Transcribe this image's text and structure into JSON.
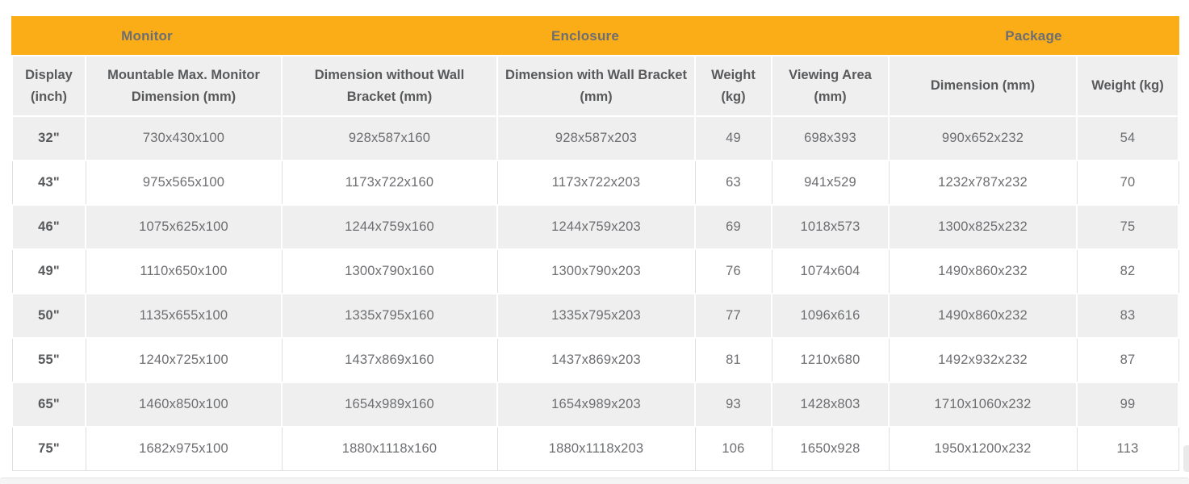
{
  "colors": {
    "accent_orange": "#FBAD18",
    "group_header_text": "#6D6E71",
    "column_header_text": "#58595B",
    "data_text": "#6D6E71",
    "row_alt_background": "#EFEFEF",
    "row_background": "#FFFFFF",
    "cell_border": "#DFDFDF"
  },
  "table": {
    "group_headers": [
      {
        "label": "Monitor"
      },
      {
        "label": "Enclosure"
      },
      {
        "label": "Package"
      }
    ],
    "columns": [
      "Display (inch)",
      "Mountable Max. Monitor Dimension (mm)",
      "Dimension without Wall Bracket (mm)",
      "Dimension with Wall Bracket (mm)",
      "Weight (kg)",
      "Viewing Area (mm)",
      "Dimension (mm)",
      "Weight (kg)"
    ],
    "rows": [
      [
        "32\"",
        "730x430x100",
        "928x587x160",
        "928x587x203",
        "49",
        "698x393",
        "990x652x232",
        "54"
      ],
      [
        "43\"",
        "975x565x100",
        "1173x722x160",
        "1173x722x203",
        "63",
        "941x529",
        "1232x787x232",
        "70"
      ],
      [
        "46\"",
        "1075x625x100",
        "1244x759x160",
        "1244x759x203",
        "69",
        "1018x573",
        "1300x825x232",
        "75"
      ],
      [
        "49\"",
        "1110x650x100",
        "1300x790x160",
        "1300x790x203",
        "76",
        "1074x604",
        "1490x860x232",
        "82"
      ],
      [
        "50\"",
        "1135x655x100",
        "1335x795x160",
        "1335x795x203",
        "77",
        "1096x616",
        "1490x860x232",
        "83"
      ],
      [
        "55\"",
        "1240x725x100",
        "1437x869x160",
        "1437x869x203",
        "81",
        "1210x680",
        "1492x932x232",
        "87"
      ],
      [
        "65\"",
        "1460x850x100",
        "1654x989x160",
        "1654x989x203",
        "93",
        "1428x803",
        "1710x1060x232",
        "99"
      ],
      [
        "75\"",
        "1682x975x100",
        "1880x1118x160",
        "1880x1118x203",
        "106",
        "1650x928",
        "1950x1200x232",
        "113"
      ]
    ]
  },
  "chart_data": {
    "type": "table",
    "title": "",
    "group_headers": [
      {
        "label": "Monitor",
        "columns": 2
      },
      {
        "label": "Enclosure",
        "columns": 4
      },
      {
        "label": "Package",
        "columns": 2
      }
    ],
    "columns": [
      "Display (inch)",
      "Mountable Max. Monitor Dimension (mm)",
      "Dimension without Wall Bracket (mm)",
      "Dimension with Wall Bracket (mm)",
      "Weight (kg)",
      "Viewing Area (mm)",
      "Dimension (mm)",
      "Weight (kg)"
    ],
    "rows": [
      [
        "32\"",
        "730x430x100",
        "928x587x160",
        "928x587x203",
        49,
        "698x393",
        "990x652x232",
        54
      ],
      [
        "43\"",
        "975x565x100",
        "1173x722x160",
        "1173x722x203",
        63,
        "941x529",
        "1232x787x232",
        70
      ],
      [
        "46\"",
        "1075x625x100",
        "1244x759x160",
        "1244x759x203",
        69,
        "1018x573",
        "1300x825x232",
        75
      ],
      [
        "49\"",
        "1110x650x100",
        "1300x790x160",
        "1300x790x203",
        76,
        "1074x604",
        "1490x860x232",
        82
      ],
      [
        "50\"",
        "1135x655x100",
        "1335x795x160",
        "1335x795x203",
        77,
        "1096x616",
        "1490x860x232",
        83
      ],
      [
        "55\"",
        "1240x725x100",
        "1437x869x160",
        "1437x869x203",
        81,
        "1210x680",
        "1492x932x232",
        87
      ],
      [
        "65\"",
        "1460x850x100",
        "1654x989x160",
        "1654x989x203",
        93,
        "1428x803",
        "1710x1060x232",
        99
      ],
      [
        "75\"",
        "1682x975x100",
        "1880x1118x160",
        "1880x1118x203",
        106,
        "1650x928",
        "1950x1200x232",
        113
      ]
    ]
  }
}
